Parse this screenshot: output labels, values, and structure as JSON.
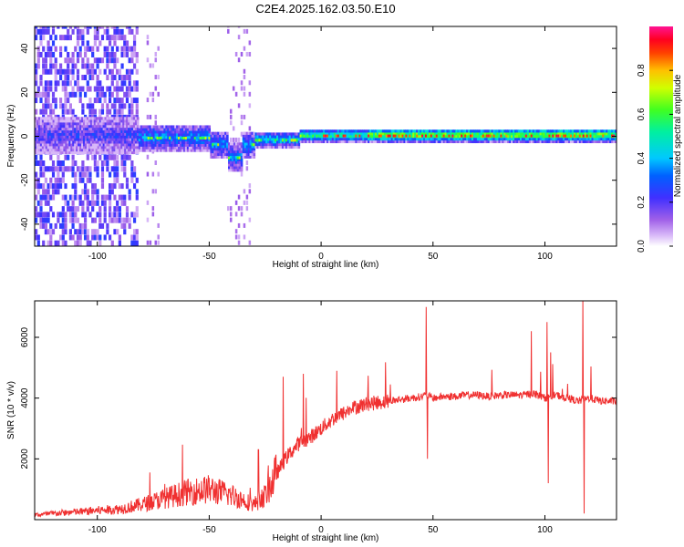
{
  "figure_title": "C2E4.2025.162.03.50.E10",
  "chart_data": [
    {
      "type": "heatmap",
      "title": "C2E4.2025.162.03.50.E10",
      "xlabel": "Height of straight line (km)",
      "ylabel": "Frequency (Hz)",
      "xlim": [
        -128,
        132
      ],
      "ylim": [
        -50,
        50
      ],
      "xticks": [
        -100,
        -50,
        0,
        50,
        100
      ],
      "yticks": [
        -40,
        -20,
        0,
        20,
        40
      ],
      "colorbar": {
        "label": "Normalized spectral amplitude",
        "range": [
          0,
          1
        ],
        "ticks": [
          0.0,
          0.2,
          0.4,
          0.6,
          0.8
        ],
        "tick_labels": [
          "0.0",
          "0.2",
          "0.4",
          "0.6",
          "0.8"
        ],
        "colormap": [
          "#ffffff",
          "#c8a0f0",
          "#8a2be2",
          "#2020ff",
          "#00d8ff",
          "#00ff60",
          "#ffff00",
          "#ff8000",
          "#ff0000",
          "#ff1493"
        ]
      },
      "description_points": [
        {
          "x": -110,
          "center_freq": 0,
          "spread": 50,
          "amplitude": 0.2
        },
        {
          "x": -75,
          "center_freq": 0,
          "spread": 8,
          "amplitude": 0.35
        },
        {
          "x": -40,
          "center_freq": -7,
          "spread": 6,
          "amplitude": 0.3
        },
        {
          "x": -20,
          "center_freq": -2,
          "spread": 3,
          "amplitude": 0.5
        },
        {
          "x": 0,
          "center_freq": 0,
          "spread": 3,
          "amplitude": 0.6
        },
        {
          "x": 50,
          "center_freq": 0,
          "spread": 3,
          "amplitude": 0.85
        },
        {
          "x": 100,
          "center_freq": 0,
          "spread": 3,
          "amplitude": 0.9
        }
      ]
    },
    {
      "type": "line",
      "xlabel": "Height of straight line (km)",
      "ylabel": "SNR (10 * v/v)",
      "xlim": [
        -128,
        132
      ],
      "ylim": [
        0,
        7200
      ],
      "xticks": [
        -100,
        -50,
        0,
        50,
        100
      ],
      "yticks": [
        2000,
        4000,
        6000
      ],
      "color": "#f03030",
      "series": [
        {
          "x": [
            -128,
            -120,
            -110,
            -100,
            -90,
            -80,
            -70,
            -60,
            -50,
            -40,
            -30,
            -25,
            -20,
            -15,
            -10,
            -5,
            0,
            5,
            10,
            15,
            20,
            25,
            30,
            35,
            40,
            45,
            47,
            50,
            55,
            60,
            65,
            70,
            75,
            80,
            85,
            90,
            95,
            100,
            105,
            110,
            115,
            120,
            125,
            132
          ],
          "y": [
            150,
            200,
            250,
            300,
            350,
            500,
            700,
            900,
            1000,
            800,
            500,
            800,
            1500,
            2100,
            2500,
            2700,
            3000,
            3300,
            3500,
            3700,
            3800,
            3850,
            3900,
            3950,
            4000,
            4050,
            4100,
            4000,
            4050,
            4050,
            4100,
            4100,
            4050,
            4100,
            4100,
            4100,
            4150,
            4000,
            4100,
            4000,
            3900,
            4000,
            3900,
            3900
          ]
        }
      ],
      "spikes": [
        {
          "x": -28,
          "y": 2300
        },
        {
          "x": -17,
          "y": 4700
        },
        {
          "x": -8,
          "y": 4800
        },
        {
          "x": 7,
          "y": 4900
        },
        {
          "x": 47,
          "y": 7000
        },
        {
          "x": 47.5,
          "y": 2000
        },
        {
          "x": 94,
          "y": 6200
        },
        {
          "x": 101,
          "y": 6500
        },
        {
          "x": 101.5,
          "y": 1200
        },
        {
          "x": 117,
          "y": 7300
        },
        {
          "x": 117.5,
          "y": 200
        }
      ]
    }
  ]
}
